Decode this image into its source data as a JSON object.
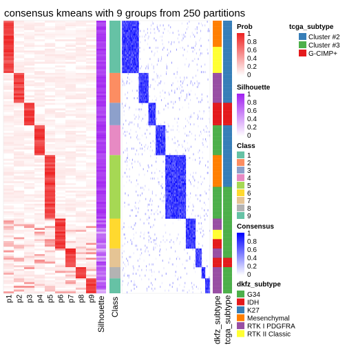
{
  "chart_data": {
    "type": "heatmap",
    "title": "consensus kmeans with 9 groups from 250 partitions",
    "prob_columns": [
      "p1",
      "p2",
      "p3",
      "p4",
      "p5",
      "p6",
      "p7",
      "p8",
      "p9"
    ],
    "annotation_columns": [
      "Silhouette",
      "Class"
    ],
    "right_columns": [
      "dkfz_subtype",
      "tcga_subtype"
    ],
    "class_colors": {
      "1": "#66C2A5",
      "2": "#FC8D62",
      "3": "#8DA0CB",
      "4": "#E78AC3",
      "5": "#A6D854",
      "6": "#FFD92F",
      "7": "#E5C494",
      "8": "#B3B3B3",
      "9": "#66C2A5"
    },
    "groups": [
      {
        "class": "1",
        "size": 28
      },
      {
        "class": "2",
        "size": 16
      },
      {
        "class": "3",
        "size": 12
      },
      {
        "class": "4",
        "size": 16
      },
      {
        "class": "5",
        "size": 34
      },
      {
        "class": "6",
        "size": 16
      },
      {
        "class": "7",
        "size": 10
      },
      {
        "class": "8",
        "size": 6
      },
      {
        "class": "9",
        "size": 8
      }
    ],
    "dkfz_per_group": [
      [
        "Mesenchymal",
        "RTK II Classic"
      ],
      [
        "RTK I PDGFRA"
      ],
      [
        "IDH"
      ],
      [
        "G34"
      ],
      [
        "Mesenchymal",
        "G34"
      ],
      [
        "RTK I PDGFRA",
        "RTK II Classic",
        "IDH"
      ],
      [
        "RTK I PDGFRA",
        "IDH"
      ],
      [
        "RTK I PDGFRA"
      ],
      [
        "RTK I PDGFRA"
      ]
    ],
    "tcga_per_group": [
      [
        "Cluster #2"
      ],
      [
        "Cluster #2"
      ],
      [
        "G-CIMP+"
      ],
      [
        "Cluster #2"
      ],
      [
        "Cluster #2",
        "Cluster #3"
      ],
      [
        "Cluster #3"
      ],
      [
        "Cluster #3",
        "G-CIMP+"
      ],
      [
        "Cluster #3"
      ],
      [
        "Cluster #3"
      ]
    ],
    "legends": {
      "prob": {
        "title": "Prob",
        "ticks": [
          "1",
          "0.8",
          "0.6",
          "0.4",
          "0.2",
          "0"
        ],
        "colors": [
          "#EE2222",
          "#FFFFFF"
        ]
      },
      "silhouette": {
        "title": "Silhouette",
        "ticks": [
          "1",
          "0.8",
          "0.6",
          "0.4",
          "0.2",
          "0"
        ],
        "colors": [
          "#A020F0",
          "#FFFFFF"
        ]
      },
      "class": {
        "title": "Class",
        "items": [
          "1",
          "2",
          "3",
          "4",
          "5",
          "6",
          "7",
          "8",
          "9"
        ]
      },
      "consensus": {
        "title": "Consensus",
        "ticks": [
          "1",
          "0.8",
          "0.6",
          "0.4",
          "0.2",
          "0"
        ],
        "colors": [
          "#0000FF",
          "#FFFFFF"
        ]
      },
      "dkfz_subtype": {
        "title": "dkfz_subtype",
        "items": [
          {
            "label": "G34",
            "color": "#4DAF4A"
          },
          {
            "label": "IDH",
            "color": "#E41A1C"
          },
          {
            "label": "K27",
            "color": "#377EB8"
          },
          {
            "label": "Mesenchymal",
            "color": "#FF7F00"
          },
          {
            "label": "RTK I PDGFRA",
            "color": "#984EA3"
          },
          {
            "label": "RTK II Classic",
            "color": "#FFFF33"
          }
        ]
      },
      "tcga_subtype": {
        "title": "tcga_subtype",
        "items": [
          {
            "label": "Cluster #2",
            "color": "#377EB8"
          },
          {
            "label": "Cluster #3",
            "color": "#4DAF4A"
          },
          {
            "label": "G-CIMP+",
            "color": "#E41A1C"
          }
        ]
      }
    }
  }
}
